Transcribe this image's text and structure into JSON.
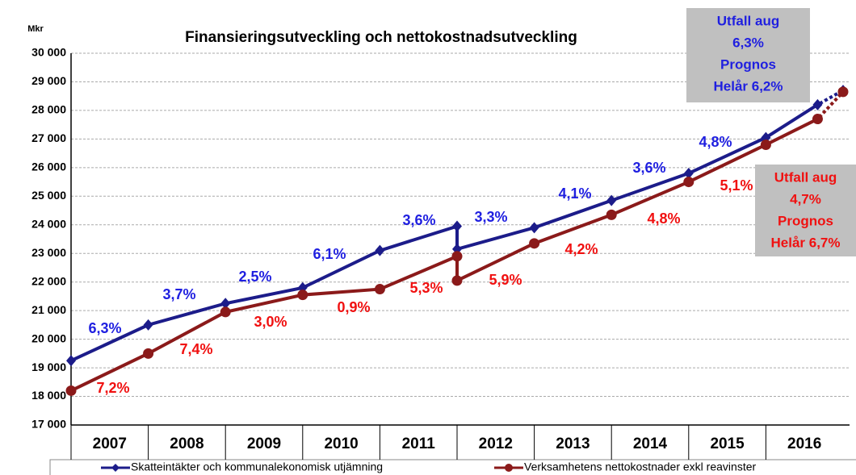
{
  "chart_data": {
    "type": "line",
    "title": "Finansieringsutveckling och nettokostnadsutveckling",
    "y_label": "Mkr",
    "categories": [
      "2007",
      "2008",
      "2009",
      "2010",
      "2011",
      "2012",
      "2013",
      "2014",
      "2015",
      "2016"
    ],
    "x": [
      2007,
      2008,
      2009,
      2010,
      2011,
      2012,
      2012,
      2013,
      2014,
      2015,
      2016,
      2016.67,
      2017
    ],
    "xlim": [
      2007,
      2017
    ],
    "ylim": [
      17000,
      30000
    ],
    "yticks": [
      {
        "value": 17000,
        "label": "17 000"
      },
      {
        "value": 18000,
        "label": "18 000"
      },
      {
        "value": 19000,
        "label": "19 000"
      },
      {
        "value": 20000,
        "label": "20 000"
      },
      {
        "value": 21000,
        "label": "21 000"
      },
      {
        "value": 22000,
        "label": "22 000"
      },
      {
        "value": 23000,
        "label": "23 000"
      },
      {
        "value": 24000,
        "label": "24 000"
      },
      {
        "value": 25000,
        "label": "25 000"
      },
      {
        "value": 26000,
        "label": "26 000"
      },
      {
        "value": 27000,
        "label": "27 000"
      },
      {
        "value": 28000,
        "label": "28 000"
      },
      {
        "value": 29000,
        "label": "29 000"
      },
      {
        "value": 30000,
        "label": "30 000"
      }
    ],
    "grid": true,
    "legend": "bottom",
    "series": [
      {
        "name": "Skatteintäkter och kommunalekonomisk utjämning",
        "color": "#1c1c8a",
        "label_color": "#1f1fe0",
        "marker": "diamond",
        "values": [
          19250,
          20500,
          21250,
          21800,
          23100,
          23950,
          23150,
          23900,
          24850,
          25800,
          27050,
          28200,
          28700
        ],
        "growth_labels": [
          "6,3%",
          "3,7%",
          "2,5%",
          "6,1%",
          "3,6%",
          "3,3%",
          "4,1%",
          "3,6%",
          "4,8%"
        ]
      },
      {
        "name": "Verksamhetens nettokostnader exkl reavinster",
        "color": "#8b1a1a",
        "label_color": "#f01010",
        "marker": "circle",
        "values": [
          18200,
          19500,
          20950,
          21550,
          21750,
          22900,
          22050,
          23350,
          24350,
          25500,
          26800,
          27700,
          28650
        ],
        "growth_labels": [
          "7,2%",
          "7,4%",
          "3,0%",
          "0,9%",
          "5,3%",
          "5,9%",
          "4,2%",
          "4,8%",
          "5,1%"
        ]
      }
    ],
    "annotations": [
      {
        "lines": [
          "Utfall aug",
          "6,3%",
          "Prognos",
          "Helår 6,2%"
        ]
      },
      {
        "lines": [
          "Utfall aug",
          "4,7%",
          "Prognos",
          "Helår 6,7%"
        ]
      }
    ]
  }
}
